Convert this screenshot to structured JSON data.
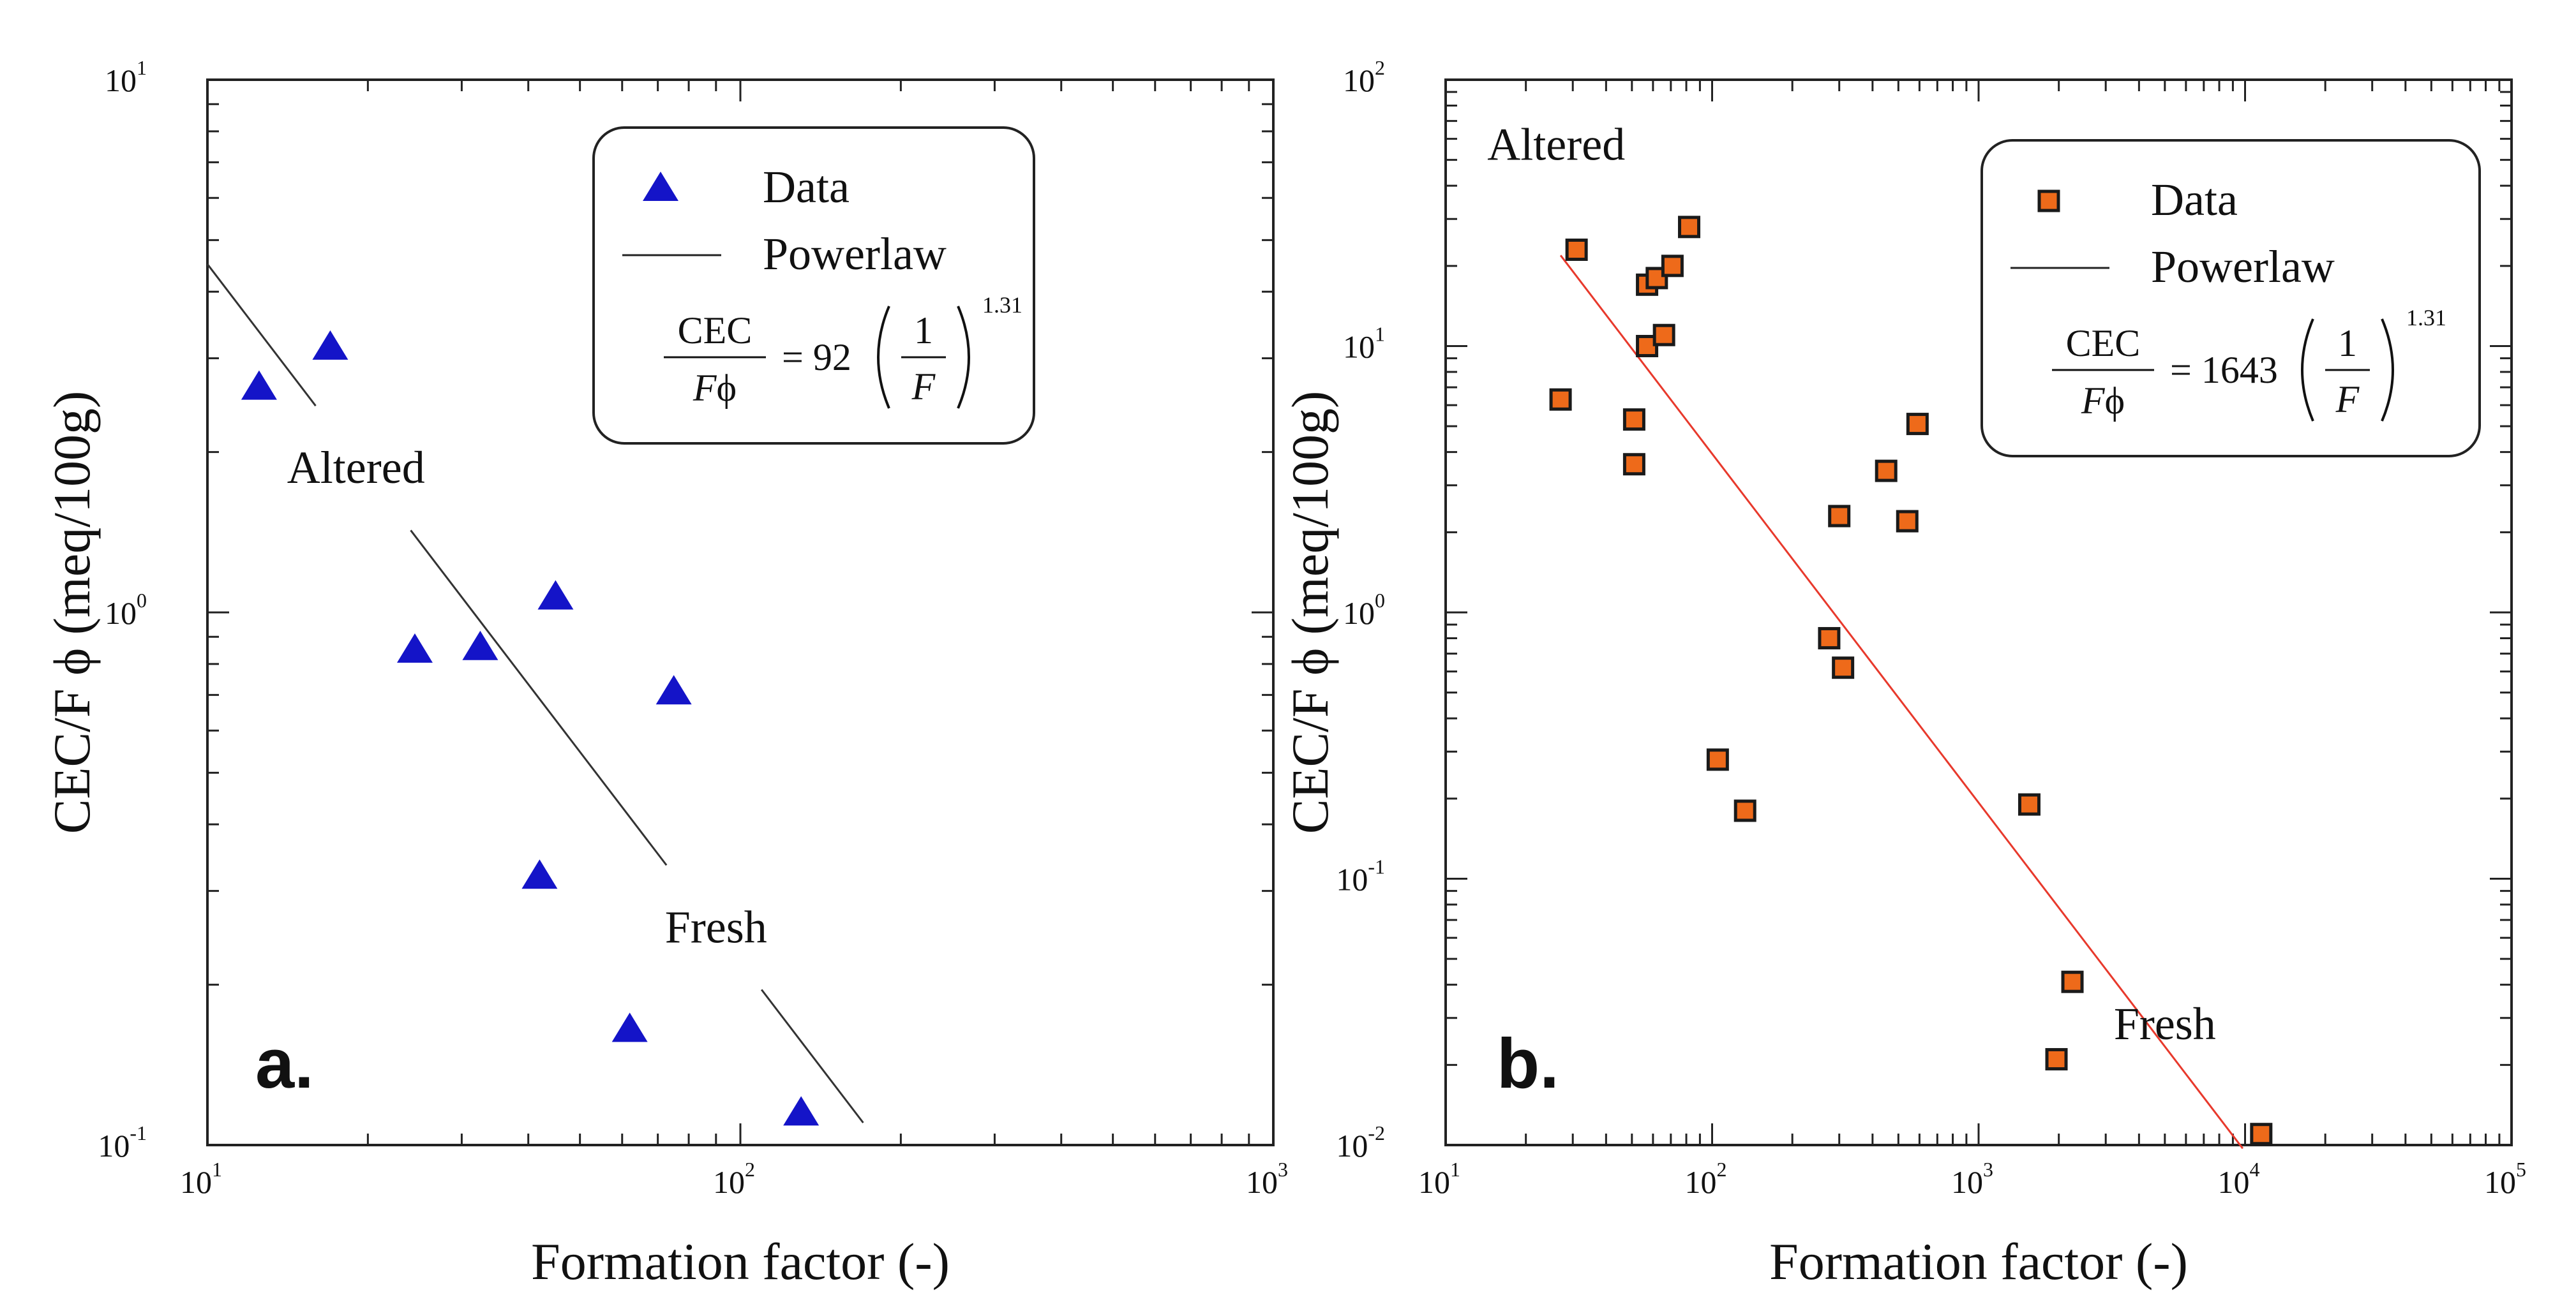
{
  "chart_data": [
    {
      "type": "scatter",
      "panel_label": "a.",
      "xlabel": "Formation factor (-)",
      "ylabel": "CEC/F ϕ (meq/100g)",
      "xscale": "log",
      "yscale": "log",
      "xlim": [
        10,
        1000
      ],
      "ylim": [
        0.1,
        10
      ],
      "x_ticks": [
        {
          "value": 10,
          "base": "10",
          "exp": "1"
        },
        {
          "value": 100,
          "base": "10",
          "exp": "2"
        },
        {
          "value": 1000,
          "base": "10",
          "exp": "3"
        }
      ],
      "y_ticks": [
        {
          "value": 0.1,
          "base": "10",
          "exp": "-1"
        },
        {
          "value": 1,
          "base": "10",
          "exp": "0"
        },
        {
          "value": 10,
          "base": "10",
          "exp": "1"
        }
      ],
      "marker": "triangle",
      "marker_color": "#1414c8",
      "line_color": "#333333",
      "series": [
        {
          "name": "Data",
          "x": [
            12.5,
            17,
            24.5,
            32.5,
            45,
            62,
            75,
            42,
            130
          ],
          "y": [
            2.65,
            3.15,
            0.85,
            0.86,
            1.07,
            0.165,
            0.71,
            0.32,
            0.115
          ]
        }
      ],
      "fit": {
        "name": "Powerlaw",
        "coefficient": 92,
        "coefficient_text": "92",
        "exponent": 1.31,
        "exponent_text": "1.31",
        "x_range": [
          10,
          170
        ],
        "style": "segmented"
      },
      "legend": {
        "position": "top-right",
        "data_label": "Data",
        "fit_label": "Powerlaw",
        "eq_cec": "CEC",
        "eq_f": "F",
        "eq_phi": "ϕ",
        "eq_one": "1"
      },
      "annotations": [
        {
          "text": "Altered",
          "x": 19,
          "y": 1.75
        },
        {
          "text": "Fresh",
          "x": 90,
          "y": 0.24
        }
      ]
    },
    {
      "type": "scatter",
      "panel_label": "b.",
      "xlabel": "Formation factor (-)",
      "ylabel": "CEC/F ϕ (meq/100g)",
      "xscale": "log",
      "yscale": "log",
      "xlim": [
        10,
        100000
      ],
      "ylim": [
        0.01,
        100
      ],
      "x_ticks": [
        {
          "value": 10,
          "base": "10",
          "exp": "1"
        },
        {
          "value": 100,
          "base": "10",
          "exp": "2"
        },
        {
          "value": 1000,
          "base": "10",
          "exp": "3"
        },
        {
          "value": 10000,
          "base": "10",
          "exp": "4"
        },
        {
          "value": 100000,
          "base": "10",
          "exp": "5"
        }
      ],
      "y_ticks": [
        {
          "value": 0.01,
          "base": "10",
          "exp": "-2"
        },
        {
          "value": 0.1,
          "base": "10",
          "exp": "-1"
        },
        {
          "value": 1,
          "base": "10",
          "exp": "0"
        },
        {
          "value": 10,
          "base": "10",
          "exp": "1"
        },
        {
          "value": 100,
          "base": "10",
          "exp": "2"
        }
      ],
      "marker": "square",
      "marker_color": "#ee6a1a",
      "line_color": "#e8392c",
      "series": [
        {
          "name": "Data",
          "x": [
            27,
            31,
            51,
            51,
            57,
            57,
            62,
            66,
            71,
            82,
            105,
            133,
            275,
            300,
            310,
            450,
            540,
            590,
            1550,
            1960,
            2250,
            11500
          ],
          "y": [
            6.3,
            23,
            5.3,
            3.6,
            17,
            10,
            18,
            11,
            20,
            28,
            0.28,
            0.18,
            0.8,
            2.3,
            0.62,
            3.4,
            2.2,
            5.1,
            0.19,
            0.021,
            0.041,
            0.011
          ]
        }
      ],
      "fit": {
        "name": "Powerlaw",
        "coefficient": 1643,
        "coefficient_text": "1643",
        "exponent": 1.31,
        "exponent_text": "1.31",
        "x_range": [
          27,
          9800
        ],
        "style": "solid"
      },
      "legend": {
        "position": "top-right",
        "data_label": "Data",
        "fit_label": "Powerlaw",
        "eq_cec": "CEC",
        "eq_f": "F",
        "eq_phi": "ϕ",
        "eq_one": "1"
      },
      "annotations": [
        {
          "text": "Altered",
          "x": 26,
          "y": 50
        },
        {
          "text": "Fresh",
          "x": 5000,
          "y": 0.025
        }
      ]
    }
  ]
}
